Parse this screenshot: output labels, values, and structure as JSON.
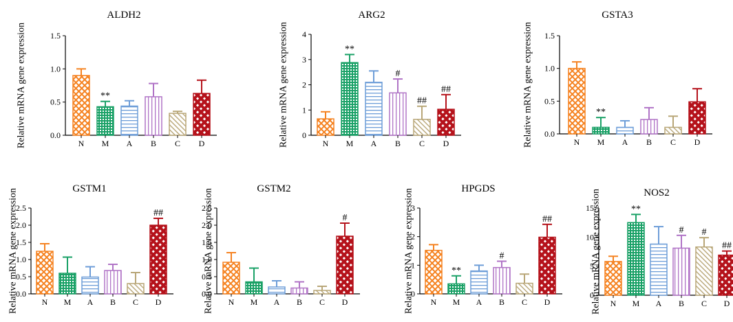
{
  "chart_data": [
    {
      "type": "bar",
      "title": "ALDH2",
      "ylabel": "Relative mRNA gene expression",
      "categories": [
        "N",
        "M",
        "A",
        "B",
        "C",
        "D"
      ],
      "values": [
        0.9,
        0.43,
        0.44,
        0.58,
        0.33,
        0.63
      ],
      "errors": [
        0.1,
        0.08,
        0.08,
        0.2,
        0.03,
        0.2
      ],
      "annotations": [
        "",
        "**",
        "",
        "",
        "",
        ""
      ],
      "ylim": [
        0,
        1.5
      ],
      "yticks": [
        "0.0",
        "0.5",
        "1.0",
        "1.5"
      ]
    },
    {
      "type": "bar",
      "title": "ARG2",
      "ylabel": "Relative mRNA gene expression",
      "categories": [
        "N",
        "M",
        "A",
        "B",
        "C",
        "D"
      ],
      "values": [
        0.65,
        2.88,
        2.1,
        1.68,
        0.63,
        1.03
      ],
      "errors": [
        0.28,
        0.32,
        0.45,
        0.55,
        0.52,
        0.58
      ],
      "annotations": [
        "",
        "**",
        "",
        "#",
        "##",
        "##"
      ],
      "ylim": [
        0,
        4
      ],
      "yticks": [
        "0",
        "1",
        "2",
        "3",
        "4"
      ]
    },
    {
      "type": "bar",
      "title": "GSTA3",
      "ylabel": "Relative mRNA gene expression",
      "categories": [
        "N",
        "M",
        "A",
        "B",
        "C",
        "D"
      ],
      "values": [
        1.0,
        0.1,
        0.1,
        0.22,
        0.1,
        0.49
      ],
      "errors": [
        0.1,
        0.15,
        0.1,
        0.18,
        0.17,
        0.2
      ],
      "annotations": [
        "",
        "**",
        "",
        "",
        "",
        ""
      ],
      "ylim": [
        0,
        1.5
      ],
      "yticks": [
        "0.0",
        "0.5",
        "1.0",
        "1.5"
      ]
    },
    {
      "type": "bar",
      "title": "GSTM1",
      "ylabel": "Relative mRNA gene expression",
      "categories": [
        "N",
        "M",
        "A",
        "B",
        "C",
        "D"
      ],
      "values": [
        1.24,
        0.6,
        0.49,
        0.68,
        0.3,
        2.0
      ],
      "errors": [
        0.22,
        0.47,
        0.3,
        0.18,
        0.32,
        0.2
      ],
      "annotations": [
        "",
        "",
        "",
        "",
        "",
        "##"
      ],
      "ylim": [
        0,
        2.5
      ],
      "yticks": [
        "0.0",
        "0.5",
        "1.0",
        "1.5",
        "2.0",
        "2.5"
      ]
    },
    {
      "type": "bar",
      "title": "GSTM2",
      "ylabel": "Relative mRNA gene expression",
      "categories": [
        "N",
        "M",
        "A",
        "B",
        "C",
        "D"
      ],
      "values": [
        0.92,
        0.35,
        0.2,
        0.17,
        0.1,
        1.68
      ],
      "errors": [
        0.28,
        0.4,
        0.18,
        0.18,
        0.12,
        0.38
      ],
      "annotations": [
        "",
        "",
        "",
        "",
        "",
        "#"
      ],
      "ylim": [
        0,
        2.5
      ],
      "yticks": [
        "0.0",
        "0.5",
        "1.0",
        "1.5",
        "2.0",
        "2.5"
      ]
    },
    {
      "type": "bar",
      "title": "HPGDS",
      "ylabel": "Relative mRNA gene expression",
      "categories": [
        "N",
        "M",
        "A",
        "B",
        "C",
        "D"
      ],
      "values": [
        1.52,
        0.35,
        0.8,
        0.92,
        0.37,
        1.98
      ],
      "errors": [
        0.2,
        0.28,
        0.2,
        0.22,
        0.32,
        0.45
      ],
      "annotations": [
        "",
        "**",
        "",
        "#",
        "",
        "##"
      ],
      "ylim": [
        0,
        3
      ],
      "yticks": [
        "0",
        "1",
        "2",
        "3"
      ]
    },
    {
      "type": "bar",
      "title": "NOS2",
      "ylabel": "Relative mRNA gene expression",
      "categories": [
        "N",
        "M",
        "A",
        "B",
        "C",
        "D"
      ],
      "values": [
        5.8,
        12.5,
        8.8,
        8.1,
        8.3,
        6.9
      ],
      "errors": [
        0.9,
        1.4,
        3.0,
        2.2,
        1.6,
        0.7
      ],
      "annotations": [
        "",
        "**",
        "",
        "#",
        "#",
        "##"
      ],
      "ylim": [
        0,
        15
      ],
      "yticks": [
        "0",
        "5",
        "10",
        "15"
      ]
    }
  ],
  "colors": {
    "N": "#f58220",
    "M": "#1aa167",
    "A": "#6d9dd8",
    "B": "#b073c6",
    "C": "#b8a677",
    "D": "#b5121b"
  }
}
